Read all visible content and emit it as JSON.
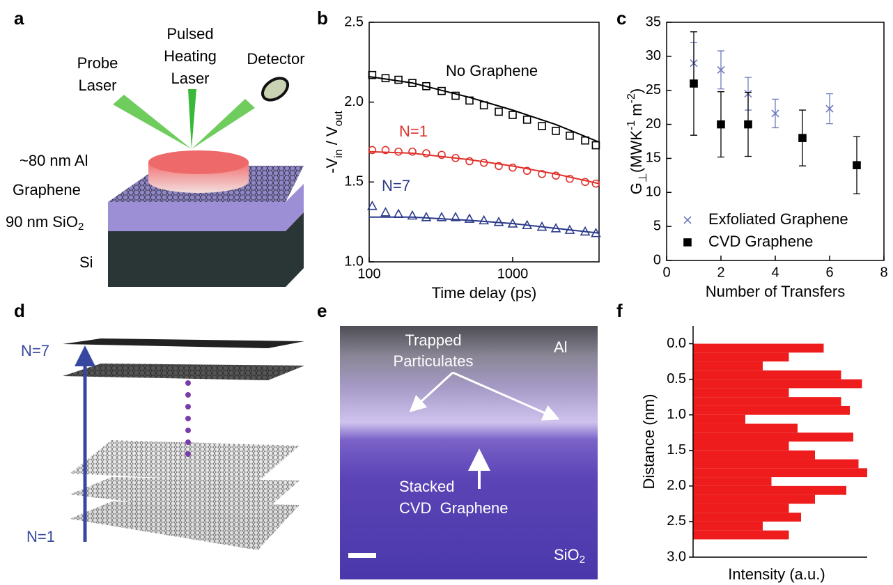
{
  "panel_labels": [
    "a",
    "b",
    "c",
    "d",
    "e",
    "f"
  ],
  "schematic_a": {
    "probe_laser": [
      "Probe",
      "Laser"
    ],
    "heating_laser": [
      "Pulsed",
      "Heating",
      "Laser"
    ],
    "detector": "Detector",
    "al": "~80 nm Al",
    "graphene": "Graphene",
    "sio2": "90 nm SiO",
    "sio2_sub": "2",
    "si": "Si"
  },
  "stack_d": {
    "top": "N=7",
    "bottom": "N=1"
  },
  "tem_e": {
    "particulates": [
      "Trapped",
      "Particulates"
    ],
    "al": "Al",
    "stacked": [
      "Stacked",
      "CVD  Graphene"
    ],
    "sio2": "SiO",
    "sio2_sub": "2"
  },
  "chart_data": [
    {
      "type": "scatter",
      "xlabel": "Time delay (ps)",
      "ylabel": [
        "-V",
        "in",
        " / V",
        "out"
      ],
      "xscale": "log",
      "xlim": [
        100,
        4000
      ],
      "xticks": [
        100,
        1000
      ],
      "ylim": [
        1.0,
        2.5
      ],
      "yticks": [
        {
          "value": 1.0,
          "label": "1.0"
        },
        {
          "value": 1.5,
          "label": "1.5"
        },
        {
          "value": 2.0,
          "label": "2.0"
        },
        {
          "value": 2.5,
          "label": "2.5"
        }
      ],
      "x": [
        105,
        130,
        160,
        200,
        250,
        320,
        400,
        500,
        630,
        800,
        1000,
        1260,
        1600,
        2000,
        2500,
        3200,
        3800
      ],
      "fit_x": [
        100,
        200,
        500,
        1000,
        2000,
        4000
      ],
      "series": [
        {
          "name": "No Graphene",
          "color": "#000000",
          "marker": "square",
          "marker_fill": false,
          "values": [
            2.17,
            2.15,
            2.14,
            2.12,
            2.1,
            2.07,
            2.04,
            2.01,
            1.98,
            1.94,
            1.92,
            1.89,
            1.85,
            1.82,
            1.79,
            1.76,
            1.73
          ],
          "fit_values": [
            2.16,
            2.12,
            2.03,
            1.95,
            1.86,
            1.75
          ]
        },
        {
          "name": "N=1",
          "color": "#e0302a",
          "marker": "circle",
          "marker_fill": false,
          "values": [
            1.7,
            1.7,
            1.69,
            1.69,
            1.68,
            1.67,
            1.65,
            1.63,
            1.62,
            1.6,
            1.59,
            1.57,
            1.55,
            1.54,
            1.52,
            1.5,
            1.49
          ],
          "fit_values": [
            1.69,
            1.68,
            1.64,
            1.6,
            1.55,
            1.49
          ]
        },
        {
          "name": "N=7",
          "color": "#2b3a8a",
          "marker": "triangle",
          "marker_fill": false,
          "values": [
            1.35,
            1.31,
            1.3,
            1.29,
            1.28,
            1.28,
            1.28,
            1.27,
            1.26,
            1.25,
            1.24,
            1.23,
            1.22,
            1.21,
            1.2,
            1.19,
            1.18
          ],
          "fit_values": [
            1.28,
            1.28,
            1.26,
            1.24,
            1.21,
            1.18
          ]
        }
      ]
    },
    {
      "type": "scatter",
      "xlabel": "Number of Transfers",
      "ylabel": [
        "G",
        "⊥",
        "(MWK",
        "-1",
        " m",
        "-2",
        ")"
      ],
      "xlim": [
        0,
        8
      ],
      "xticks": [
        0,
        2,
        4,
        6,
        8
      ],
      "ylim": [
        0,
        35
      ],
      "yticks": [
        0,
        5,
        10,
        15,
        20,
        25,
        30,
        35
      ],
      "legend": "lower left",
      "series": [
        {
          "name": "Exfoliated Graphene",
          "color": "#6f7bbd",
          "marker": "x",
          "marker_fill": false,
          "x": [
            1,
            2,
            3,
            4,
            6
          ],
          "values": [
            29,
            28,
            24.5,
            21.6,
            22.3
          ],
          "errors": [
            3,
            2.8,
            2.4,
            2.1,
            2.2
          ]
        },
        {
          "name": "CVD Graphene",
          "color": "#000000",
          "marker": "square",
          "marker_fill": true,
          "x": [
            1,
            2,
            3,
            5,
            7
          ],
          "values": [
            26,
            20,
            20,
            18,
            14
          ],
          "errors": [
            7.6,
            4.8,
            4.7,
            4.1,
            4.2
          ]
        }
      ]
    },
    {
      "type": "histogram",
      "orientation": "horizontal",
      "ylabel": "Distance (nm)",
      "xlabel": "Intensity (a.u.)",
      "color": "#ee1c1c",
      "xlim": [
        0,
        1
      ],
      "ylim": [
        -0.25,
        3.0
      ],
      "y_inverted": true,
      "yticks": [
        {
          "value": 0,
          "label": "0.0"
        },
        {
          "value": 0.5,
          "label": "0.5"
        },
        {
          "value": 1,
          "label": "1.0"
        },
        {
          "value": 1.5,
          "label": "1.5"
        },
        {
          "value": 2,
          "label": "2.0"
        },
        {
          "value": 2.5,
          "label": "2.5"
        },
        {
          "value": 3,
          "label": "3.0"
        }
      ],
      "bins": [
        0,
        0.125,
        0.25,
        0.375,
        0.5,
        0.625,
        0.75,
        0.875,
        1.0,
        1.125,
        1.25,
        1.375,
        1.5,
        1.625,
        1.75,
        1.875,
        2.0,
        2.125,
        2.25,
        2.375,
        2.5,
        2.625,
        2.75
      ],
      "values": [
        0.75,
        0.55,
        0.4,
        0.85,
        0.97,
        0.55,
        0.85,
        0.9,
        0.3,
        0.6,
        0.92,
        0.55,
        0.7,
        0.95,
        1.0,
        0.45,
        0.88,
        0.7,
        0.55,
        0.62,
        0.4,
        0.55
      ]
    }
  ]
}
